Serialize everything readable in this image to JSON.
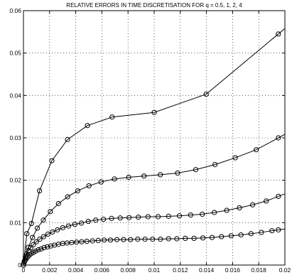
{
  "chart_data": {
    "type": "line",
    "title": "RELATIVE ERRORS IN TIME DISCRETISATION FOR q = 0.5, 1, 2, 4",
    "xlabel": "",
    "ylabel": "",
    "xlim": [
      0,
      0.02
    ],
    "ylim": [
      0,
      0.06
    ],
    "grid": true,
    "x_ticks": [
      "0",
      "0.002",
      "0.004",
      "0.006",
      "0.008",
      "0.01",
      "0.012",
      "0.014",
      "0.016",
      "0.018",
      "0.02"
    ],
    "y_ticks": [
      "0",
      "0.01",
      "0.02",
      "0.03",
      "0.04",
      "0.05",
      "0.06"
    ],
    "series": [
      {
        "points": [
          [
            0,
            0
          ],
          [
            0.00026,
            0.0076
          ],
          [
            0.00052,
            0.0098
          ],
          [
            0.00078,
            0.0125
          ],
          [
            0.00104,
            0.0148
          ],
          [
            0.0013,
            0.0162
          ],
          [
            0.00156,
            0.0178
          ]
        ],
        "x": [
          0,
          0.00026,
          0.00061,
          0.00123,
          0.00217,
          0.00337,
          0.0049,
          0.00678,
          0.01,
          0.01398,
          0.0195
        ],
        "y": [
          0,
          0.0074,
          0.0098,
          0.0175,
          0.0246,
          0.0296,
          0.0329,
          0.0349,
          0.036,
          0.0403,
          0.0545
        ]
      },
      {
        "x": [
          0,
          0.00015,
          0.00038,
          0.00069,
          0.00106,
          0.00152,
          0.00206,
          0.00268,
          0.00338,
          0.00415,
          0.00501,
          0.00594,
          0.00696,
          0.00805,
          0.00922,
          0.01047,
          0.01179,
          0.01318,
          0.01465,
          0.0162,
          0.01781,
          0.0195
        ],
        "y": [
          0,
          0.0021,
          0.0042,
          0.0065,
          0.0087,
          0.0106,
          0.0126,
          0.0145,
          0.0161,
          0.0175,
          0.0187,
          0.0196,
          0.0203,
          0.0207,
          0.021,
          0.0213,
          0.0217,
          0.0225,
          0.0237,
          0.0253,
          0.0272,
          0.03
        ]
      },
      {
        "x": [
          0,
          6e-05,
          0.00014,
          0.00025,
          0.00039,
          0.00056,
          0.00076,
          0.00099,
          0.00125,
          0.00154,
          0.00187,
          0.00222,
          0.0026,
          0.00301,
          0.00345,
          0.00393,
          0.00443,
          0.00496,
          0.00553,
          0.00612,
          0.00674,
          0.0074,
          0.00808,
          0.00879,
          0.00953,
          0.0103,
          0.0111,
          0.01193,
          0.01279,
          0.01368,
          0.0146,
          0.01555,
          0.01652,
          0.01753,
          0.01857,
          0.0195
        ],
        "y": [
          0,
          0.0009,
          0.0017,
          0.0026,
          0.0034,
          0.0041,
          0.0048,
          0.0055,
          0.0061,
          0.0067,
          0.0073,
          0.0078,
          0.0083,
          0.0088,
          0.0092,
          0.0096,
          0.0099,
          0.0103,
          0.0106,
          0.0108,
          0.011,
          0.0111,
          0.0112,
          0.0113,
          0.0114,
          0.0114,
          0.0115,
          0.0116,
          0.0118,
          0.012,
          0.0124,
          0.0129,
          0.0135,
          0.0142,
          0.0151,
          0.0162
        ]
      },
      {
        "x": [
          0,
          3e-05,
          8e-05,
          0.00015,
          0.00024,
          0.00034,
          0.00047,
          0.00061,
          0.00077,
          0.00094,
          0.00114,
          0.00135,
          0.00158,
          0.00183,
          0.00209,
          0.00238,
          0.00268,
          0.003,
          0.00333,
          0.00369,
          0.00406,
          0.00445,
          0.00485,
          0.00528,
          0.00572,
          0.00618,
          0.00666,
          0.00715,
          0.00766,
          0.00819,
          0.00874,
          0.0093,
          0.00988,
          0.01048,
          0.0111,
          0.01173,
          0.01238,
          0.01305,
          0.01373,
          0.01443,
          0.01515,
          0.01589,
          0.01664,
          0.01741,
          0.0182,
          0.01901,
          0.0195
        ],
        "y": [
          0,
          0.0004,
          0.0008,
          0.0012,
          0.0016,
          0.002,
          0.0024,
          0.0027,
          0.003,
          0.0033,
          0.0036,
          0.0038,
          0.0041,
          0.0043,
          0.0045,
          0.0047,
          0.0049,
          0.0051,
          0.0052,
          0.0053,
          0.0054,
          0.0055,
          0.0056,
          0.0057,
          0.0058,
          0.0059,
          0.0059,
          0.006,
          0.006,
          0.006,
          0.0061,
          0.0061,
          0.0061,
          0.0061,
          0.0062,
          0.0062,
          0.0063,
          0.0063,
          0.0064,
          0.0065,
          0.0067,
          0.0069,
          0.0071,
          0.0074,
          0.0077,
          0.0081,
          0.0083
        ]
      }
    ]
  }
}
